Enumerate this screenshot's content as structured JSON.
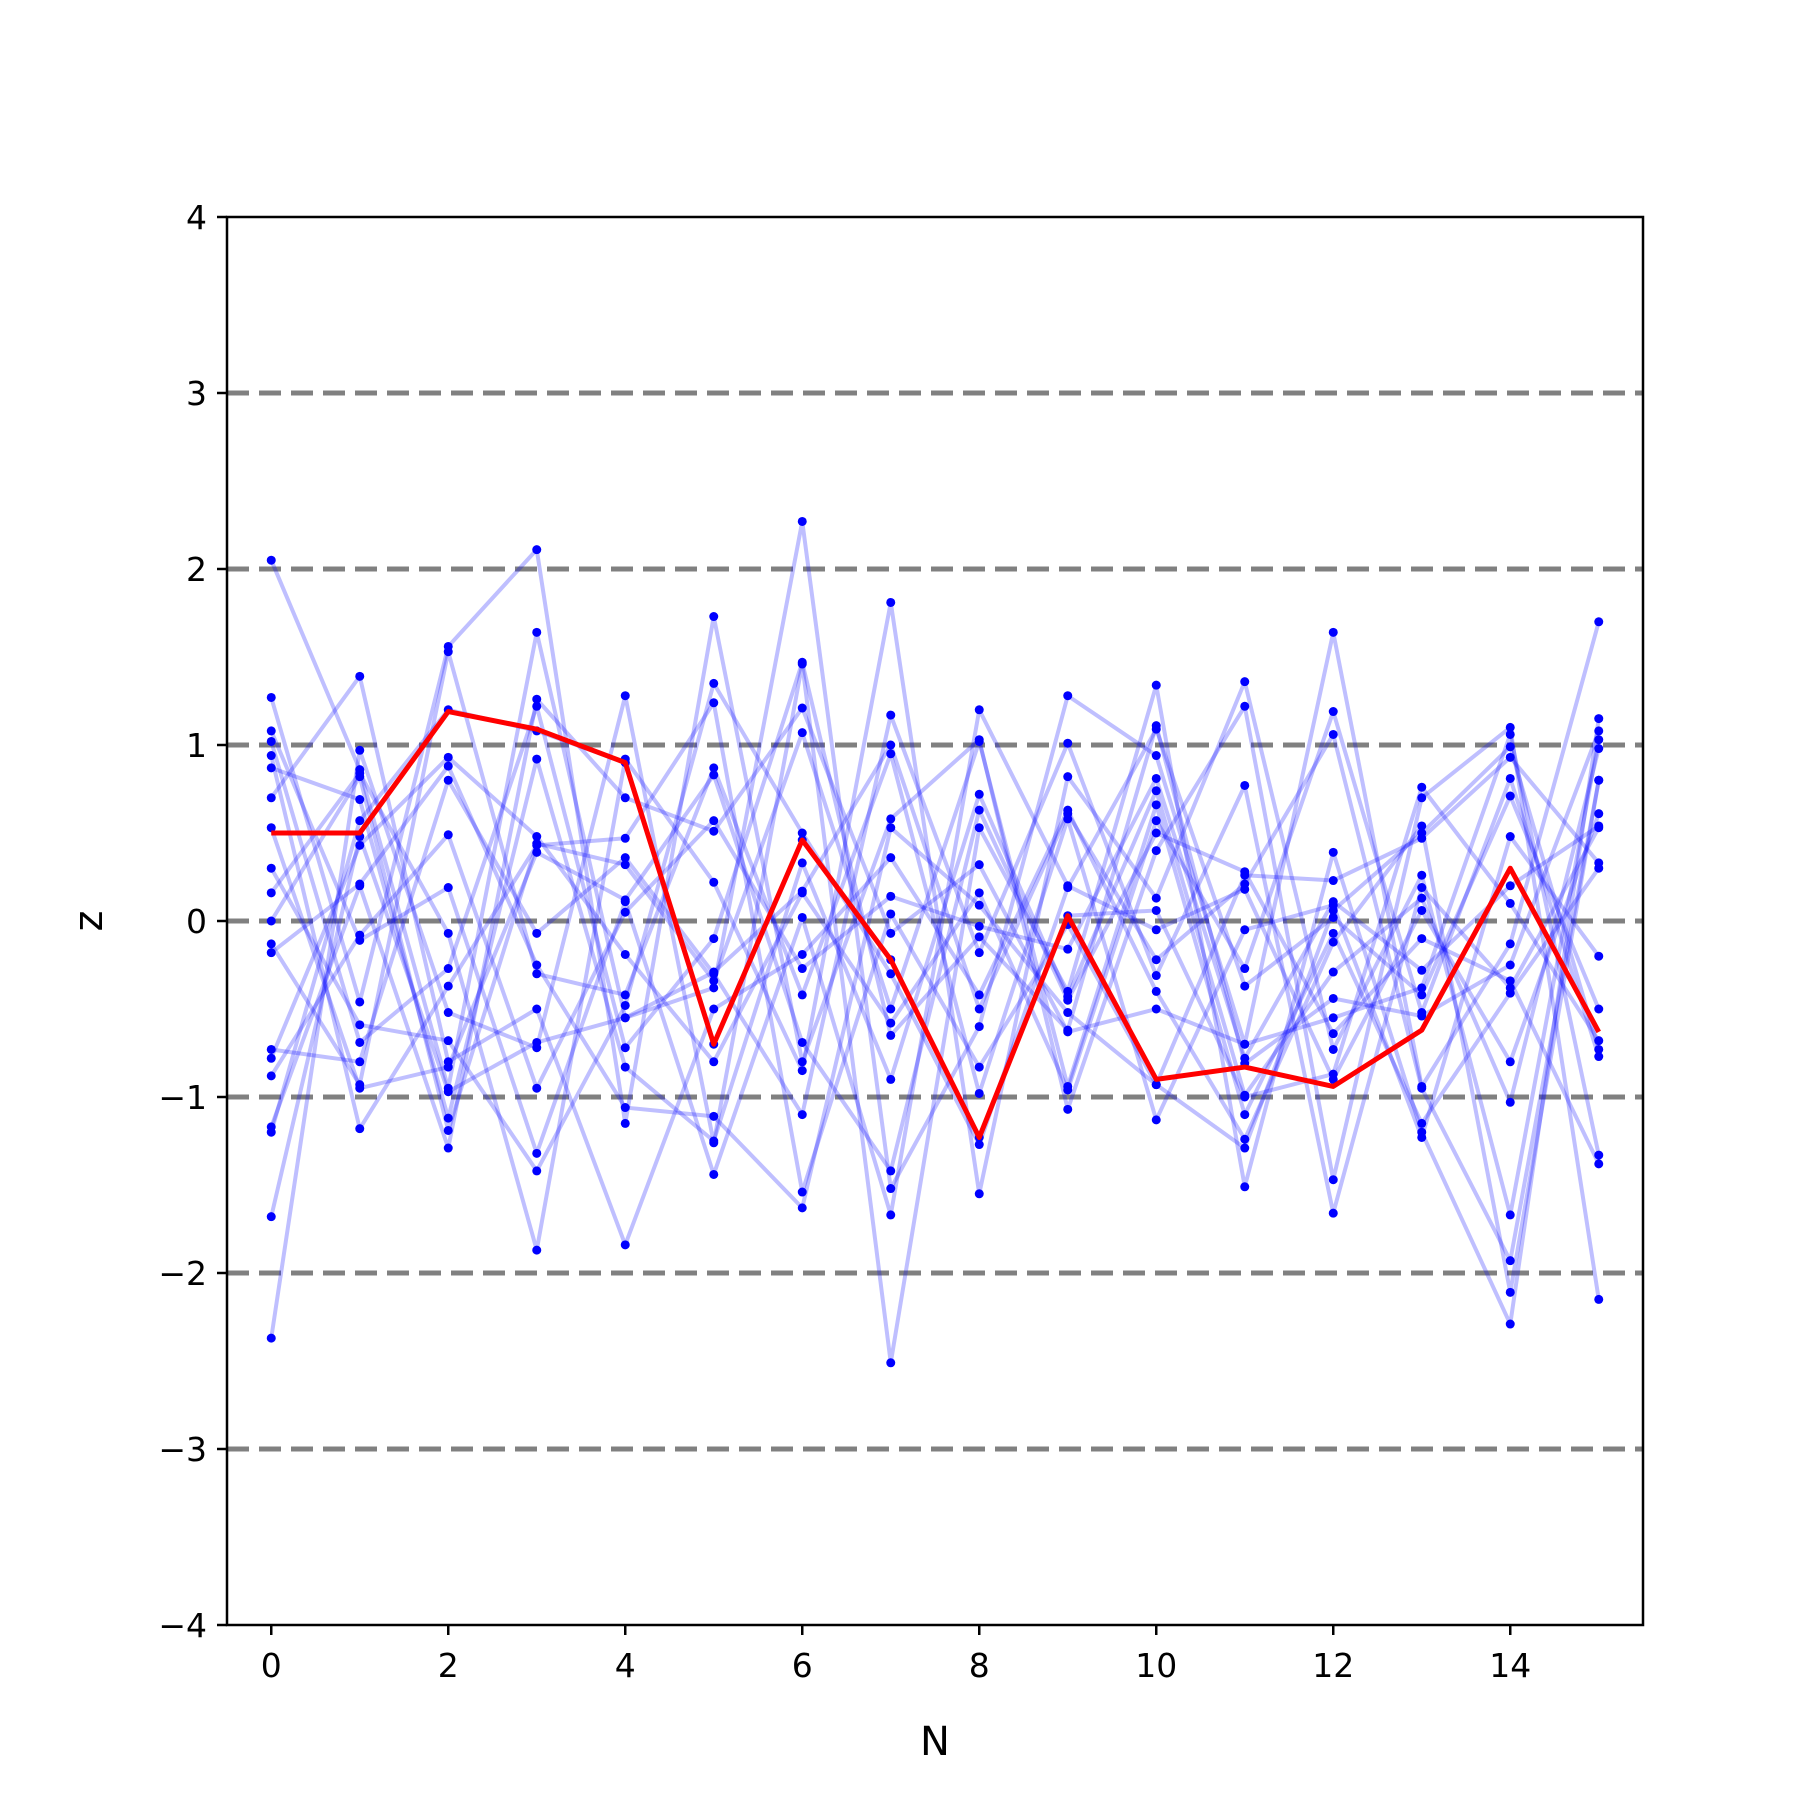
{
  "chart_data": {
    "type": "line",
    "title": "",
    "xlabel": "N",
    "ylabel": "z",
    "xlim": [
      -0.5,
      15.5
    ],
    "ylim": [
      -4,
      4
    ],
    "xticks": [
      "0",
      "2",
      "4",
      "6",
      "8",
      "10",
      "12",
      "14"
    ],
    "yticks": [
      "−4",
      "−3",
      "−2",
      "−1",
      "0",
      "1",
      "2",
      "3",
      "4"
    ],
    "reference_lines": [
      -3,
      -2,
      -1,
      0,
      1,
      2,
      3
    ],
    "reference_line_color": "#808080",
    "x": [
      0,
      1,
      2,
      3,
      4,
      5,
      6,
      7,
      8,
      9,
      10,
      11,
      12,
      13,
      14,
      15
    ],
    "highlight": {
      "color": "#ff0000",
      "values": [
        0.5,
        0.5,
        1.19,
        1.09,
        0.9,
        -0.7,
        0.46,
        -0.22,
        -1.23,
        0.03,
        -0.9,
        -0.83,
        -0.94,
        -0.62,
        0.3,
        -0.63
      ]
    },
    "series_color": "#0000ff",
    "series": [
      {
        "values": [
          2.05,
          0.86,
          -0.95,
          1.64,
          -0.55,
          -0.38,
          2.27,
          -1.52,
          -0.6,
          1.28,
          0.94,
          -0.7,
          1.64,
          -0.94,
          -0.13,
          1.7
        ]
      },
      {
        "values": [
          1.27,
          -0.46,
          1.56,
          2.11,
          -1.15,
          1.73,
          -0.8,
          0.58,
          1.03,
          -1.07,
          0.4,
          1.22,
          -1.47,
          0.7,
          1.1,
          -2.15
        ]
      },
      {
        "values": [
          -2.37,
          0.97,
          -0.52,
          -0.72,
          1.28,
          -1.26,
          1.46,
          -2.51,
          0.53,
          -0.4,
          1.34,
          -1.51,
          0.39,
          -1.2,
          -2.29,
          1.15
        ]
      },
      {
        "values": [
          0.94,
          -1.18,
          -0.37,
          0.43,
          0.47,
          1.24,
          -1.54,
          0.04,
          -0.83,
          -0.02,
          -0.93,
          0.26,
          0.23,
          0.47,
          0.93,
          0.33
        ]
      },
      {
        "values": [
          0.16,
          0.84,
          -0.07,
          -1.87,
          0.92,
          0.22,
          -0.85,
          1.81,
          -1.55,
          0.82,
          0.13,
          1.36,
          -0.73,
          0.26,
          -1.67,
          1.03
        ]
      },
      {
        "values": [
          -0.78,
          0.43,
          0.93,
          0.48,
          -0.19,
          -0.8,
          0.16,
          -0.58,
          0.16,
          -0.96,
          0.57,
          -0.27,
          1.19,
          -0.52,
          0.81,
          -0.77
        ]
      },
      {
        "values": [
          0.7,
          1.39,
          -0.8,
          -0.5,
          -1.84,
          -0.5,
          -0.19,
          0.36,
          -0.42,
          0.63,
          -0.4,
          -1.24,
          -0.12,
          0.54,
          -2.11,
          0.8
        ]
      },
      {
        "values": [
          -1.17,
          0.2,
          -1.29,
          1.26,
          0.7,
          0.51,
          1.21,
          -0.07,
          0.32,
          -0.63,
          -0.5,
          -0.7,
          -0.55,
          -0.38,
          1.06,
          -1.33
        ]
      },
      {
        "values": [
          1.08,
          -0.11,
          0.19,
          -1.32,
          0.11,
          -1.44,
          0.02,
          -1.67,
          1.2,
          0.2,
          -0.05,
          0.18,
          -0.9,
          0.06,
          -0.8,
          0.61
        ]
      },
      {
        "values": [
          -0.13,
          -0.93,
          1.53,
          -0.3,
          -0.42,
          0.87,
          -0.42,
          0.95,
          -0.98,
          0.58,
          -1.13,
          -0.05,
          0.09,
          -1.23,
          0.48,
          -0.2
        ]
      },
      {
        "values": [
          0.87,
          0.69,
          -1.12,
          0.92,
          -0.83,
          -1.25,
          0.33,
          -0.9,
          0.72,
          -0.43,
          0.74,
          -0.99,
          -0.29,
          0.13,
          -1.03,
          0.98
        ]
      },
      {
        "values": [
          -0.73,
          -0.8,
          0.8,
          -0.07,
          0.36,
          -0.3,
          -1.1,
          1.17,
          -0.18,
          1.01,
          -0.31,
          0.77,
          -1.66,
          0.19,
          -0.38,
          0.53
        ]
      },
      {
        "values": [
          0.3,
          -0.59,
          -0.68,
          -1.42,
          -0.48,
          1.35,
          0.5,
          -0.3,
          -1.27,
          0.19,
          1.09,
          -0.37,
          0.02,
          -0.42,
          0.71,
          -0.5
        ]
      },
      {
        "values": [
          -1.2,
          0.57,
          1.2,
          1.08,
          0.9,
          -0.7,
          0.46,
          -0.22,
          -1.23,
          0.03,
          0.06,
          -1.0,
          -0.87,
          0.76,
          0.1,
          -0.68
        ]
      },
      {
        "values": [
          1.02,
          -0.69,
          -0.27,
          1.22,
          -0.72,
          -0.1,
          1.47,
          -0.65,
          -0.09,
          -0.62,
          1.11,
          -0.81,
          -0.44,
          -0.54,
          -0.25,
          1.08
        ]
      },
      {
        "values": [
          -0.18,
          0.21,
          0.88,
          -0.25,
          -1.06,
          -1.11,
          -1.63,
          0.53,
          0.09,
          -0.52,
          -0.93,
          -1.29,
          0.06,
          0.5,
          0.99,
          -0.73
        ]
      },
      {
        "values": [
          0.53,
          -0.95,
          -0.83,
          0.39,
          0.12,
          0.83,
          -0.69,
          -1.42,
          0.63,
          -0.45,
          0.5,
          0.28,
          -0.64,
          -0.1,
          -0.34,
          -1.38
        ]
      },
      {
        "values": [
          -1.68,
          0.48,
          -0.97,
          -0.69,
          -0.55,
          -0.29,
          0.17,
          1.0,
          -0.5,
          0.61,
          -0.22,
          0.21,
          1.06,
          -0.95,
          -1.93,
          0.8
        ]
      },
      {
        "values": [
          0.0,
          0.82,
          -1.19,
          0.44,
          0.32,
          -0.34,
          1.07,
          -0.5,
          1.02,
          -0.94,
          0.66,
          -1.1,
          -0.07,
          -1.15,
          -0.41,
          0.3
        ]
      },
      {
        "values": [
          -0.88,
          -0.08,
          0.49,
          -0.95,
          0.05,
          0.57,
          -0.27,
          0.14,
          -0.03,
          -0.16,
          0.81,
          -0.78,
          0.11,
          -0.28,
          0.2,
          0.54
        ]
      }
    ]
  }
}
